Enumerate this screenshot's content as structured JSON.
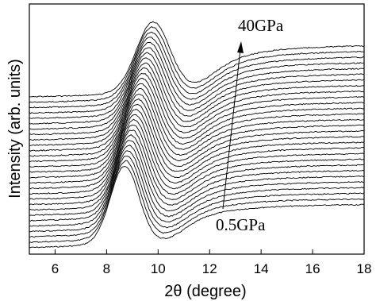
{
  "chart_data": {
    "type": "line",
    "xlabel": "2θ (degree)",
    "ylabel": "Intensity (arb. units)",
    "xlim": [
      5,
      18
    ],
    "x_ticks": [
      "6",
      "8",
      "10",
      "12",
      "14",
      "16",
      "18"
    ],
    "y_ticks": [],
    "grid": false,
    "legend": "none",
    "line_color": "#000000",
    "annotations": {
      "top": "40GPa",
      "bottom": "0.5GPa",
      "arrow": "increasing pressure from 0.5GPa to 40GPa"
    },
    "series_count": 29,
    "peak_position": {
      "lowest_pressure": 8.7,
      "highest_pressure": 9.8
    },
    "series_model": {
      "x": [
        5,
        6,
        7,
        8,
        8.5,
        9,
        9.5,
        10,
        10.5,
        11,
        12,
        13,
        14,
        15,
        16,
        17,
        18
      ],
      "profile_note": "each curve is an offset-stacked diffraction pattern: sharp peak near 9 degrees, broad hump near 14-17 degrees"
    }
  }
}
